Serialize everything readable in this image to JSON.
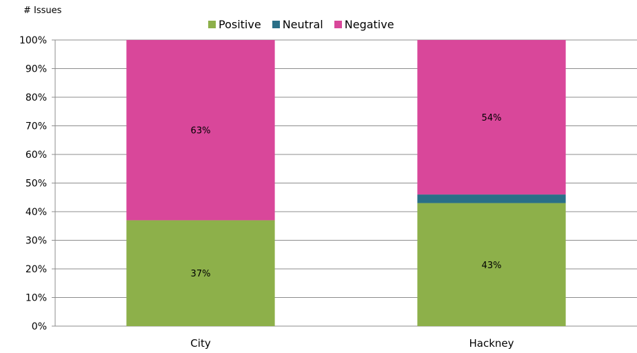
{
  "chart_data": {
    "type": "bar",
    "stacked": true,
    "ylabel": "# Issues",
    "ylim": [
      0,
      100
    ],
    "yticks": [
      "0%",
      "10%",
      "20%",
      "30%",
      "40%",
      "50%",
      "60%",
      "70%",
      "80%",
      "90%",
      "100%"
    ],
    "categories": [
      "City",
      "Hackney"
    ],
    "series": [
      {
        "name": "Positive",
        "color": "#8db04a",
        "values": [
          37,
          43
        ],
        "labels": [
          "37%",
          "43%"
        ]
      },
      {
        "name": "Neutral",
        "color": "#2a6f87",
        "values": [
          0,
          3
        ],
        "labels": [
          "",
          ""
        ]
      },
      {
        "name": "Negative",
        "color": "#d9479a",
        "values": [
          63,
          54
        ],
        "labels": [
          "63%",
          "54%"
        ]
      }
    ],
    "legend_position": "top",
    "grid": true
  }
}
